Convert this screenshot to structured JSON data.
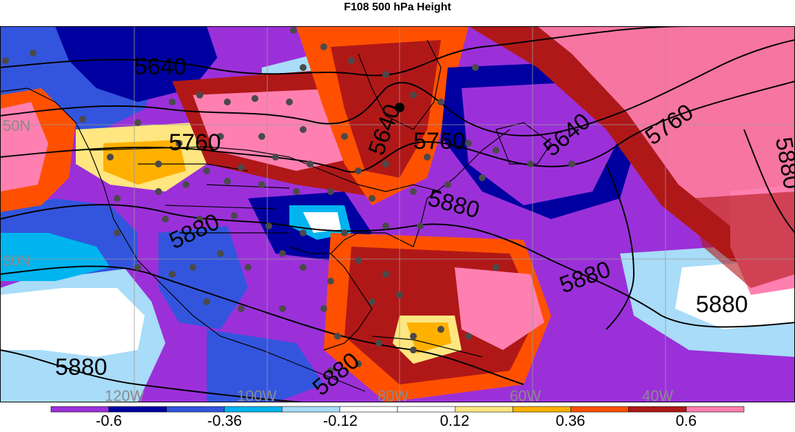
{
  "title": "F108 500 hPa Height",
  "contour_labels": [
    "5640",
    "5760",
    "5640",
    "5760",
    "5640",
    "5760",
    "5880",
    "5880",
    "5880",
    "5880",
    "5880",
    "5880",
    "5880"
  ],
  "lat_labels": [
    "50N",
    "30N"
  ],
  "lon_labels": [
    "120W",
    "100W",
    "80W",
    "60W",
    "40W"
  ],
  "colorbar": {
    "colors": [
      "#9b30d9",
      "#0000a0",
      "#3355dd",
      "#00b4f0",
      "#a8dcf8",
      "#ffffff",
      "#ffffff",
      "#ffe680",
      "#ffb000",
      "#ff5000",
      "#b01818",
      "#ff80b0"
    ],
    "labels": [
      "-0.6",
      "-0.36",
      "-0.12",
      "0.12",
      "0.36",
      "0.6"
    ]
  },
  "legend_marker": "black-dot"
}
